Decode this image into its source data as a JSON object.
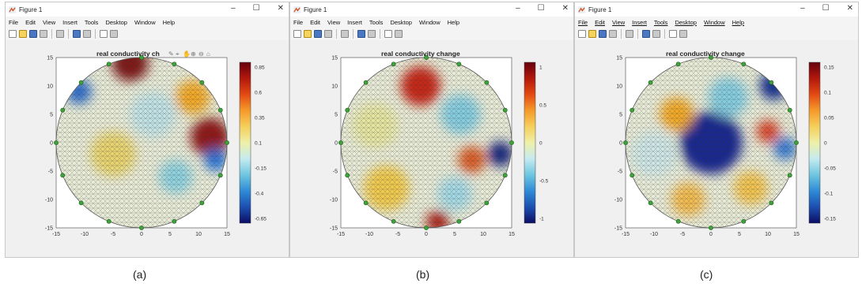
{
  "figures": [
    {
      "window_title": "Figure 1",
      "menu": [
        "File",
        "Edit",
        "View",
        "Insert",
        "Tools",
        "Desktop",
        "Window",
        "Help"
      ],
      "plot_title": "real conductivity ch",
      "axes_toolbar": [
        "edit-plot-icon",
        "data-cursor-icon",
        "pan-icon",
        "zoom-in-icon",
        "zoom-out-icon",
        "home-icon"
      ],
      "x_ticks": [
        "-15",
        "-10",
        "-5",
        "0",
        "5",
        "10",
        "15"
      ],
      "y_ticks": [
        "15",
        "10",
        "5",
        "0",
        "-5",
        "-10",
        "-15"
      ],
      "colorbar_ticks": [
        "0.85",
        "0.6",
        "0.35",
        "0.1",
        "-0.15",
        "-0.4",
        "-0.65"
      ],
      "caption": "(a)",
      "blobs": [
        {
          "x": -2,
          "y": 14,
          "r": 3.2,
          "color": "#7a0d0d"
        },
        {
          "x": 12,
          "y": 1,
          "r": 3.4,
          "color": "#8b0a0a"
        },
        {
          "x": -11,
          "y": 9,
          "r": 2.2,
          "color": "#2566c9"
        },
        {
          "x": 13,
          "y": -3,
          "r": 2,
          "color": "#1e6fd9"
        },
        {
          "x": 9,
          "y": 8,
          "r": 3,
          "color": "#f2a51f"
        },
        {
          "x": 6,
          "y": -6,
          "r": 3,
          "color": "#8ad1df"
        },
        {
          "x": -5,
          "y": -2,
          "r": 4,
          "color": "#e8d36a"
        },
        {
          "x": 2,
          "y": 5,
          "r": 4,
          "color": "#bfe3e7"
        }
      ]
    },
    {
      "window_title": "Figure 1",
      "menu": [
        "File",
        "Edit",
        "View",
        "Insert",
        "Tools",
        "Desktop",
        "Window",
        "Help"
      ],
      "plot_title": "real conductivity change",
      "x_ticks": [
        "-15",
        "-10",
        "-5",
        "0",
        "5",
        "10",
        "15"
      ],
      "y_ticks": [
        "15",
        "10",
        "5",
        "0",
        "-5",
        "-10",
        "-15"
      ],
      "colorbar_ticks": [
        "1",
        "0.5",
        "0",
        "-0.5",
        "-1"
      ],
      "caption": "(b)",
      "blobs": [
        {
          "x": -1,
          "y": 10,
          "r": 3.5,
          "color": "#c41a0e"
        },
        {
          "x": 8,
          "y": -3,
          "r": 2.4,
          "color": "#d9541b"
        },
        {
          "x": 13,
          "y": -2,
          "r": 2.2,
          "color": "#101a7a"
        },
        {
          "x": 2,
          "y": -14,
          "r": 2,
          "color": "#a8150b"
        },
        {
          "x": 6,
          "y": 5,
          "r": 3.5,
          "color": "#7fcbe0"
        },
        {
          "x": -7,
          "y": -8,
          "r": 4,
          "color": "#f0c847"
        },
        {
          "x": -9,
          "y": 3,
          "r": 4,
          "color": "#e6e69e"
        },
        {
          "x": 5,
          "y": -9,
          "r": 3,
          "color": "#9fd8e6"
        }
      ]
    },
    {
      "window_title": "Figure 1",
      "menu": [
        "File",
        "Edit",
        "View",
        "Insert",
        "Tools",
        "Desktop",
        "Window",
        "Help"
      ],
      "plot_title": "real conductivity change",
      "x_ticks": [
        "-15",
        "-10",
        "-5",
        "0",
        "5",
        "10",
        "15"
      ],
      "y_ticks": [
        "15",
        "10",
        "5",
        "0",
        "-5",
        "-10",
        "-15"
      ],
      "colorbar_ticks": [
        "0.15",
        "0.1",
        "0.05",
        "0",
        "-0.05",
        "-0.1",
        "-0.15"
      ],
      "caption": "(c)",
      "blobs": [
        {
          "x": 0,
          "y": 0,
          "r": 5.5,
          "color": "#0c1e8c"
        },
        {
          "x": 11,
          "y": 10,
          "r": 2.5,
          "color": "#0d2a8e"
        },
        {
          "x": 10,
          "y": 2,
          "r": 2,
          "color": "#d93b1a"
        },
        {
          "x": -6,
          "y": 5,
          "r": 3,
          "color": "#f2a51f"
        },
        {
          "x": -4,
          "y": -10,
          "r": 3,
          "color": "#f2b84a"
        },
        {
          "x": 7,
          "y": -8,
          "r": 3,
          "color": "#f2c24a"
        },
        {
          "x": 13,
          "y": -1,
          "r": 2,
          "color": "#2c74d2"
        },
        {
          "x": -10,
          "y": -2,
          "r": 4,
          "color": "#cde8e8"
        },
        {
          "x": 3,
          "y": 8,
          "r": 3.5,
          "color": "#7fcbe0"
        }
      ]
    }
  ],
  "colormap": [
    "#67000d",
    "#b2180b",
    "#e34a13",
    "#f59a2a",
    "#f5cf5c",
    "#eef0a8",
    "#c5ebf0",
    "#6fc6e0",
    "#2e8bd6",
    "#1c4fb0",
    "#0b0d64"
  ],
  "electrode_color": "#3fa33b"
}
